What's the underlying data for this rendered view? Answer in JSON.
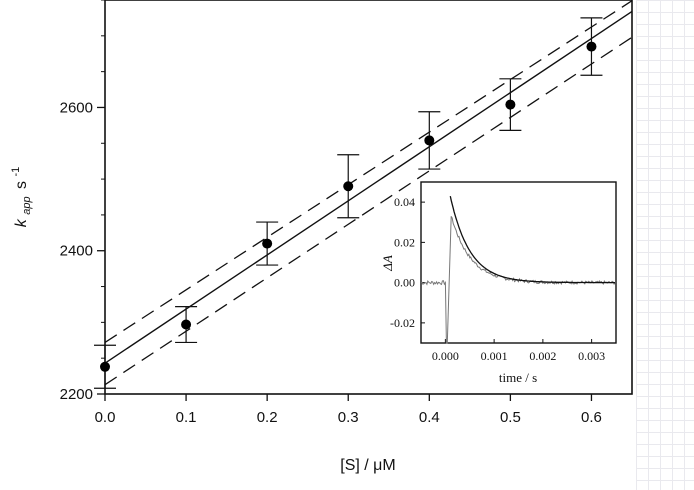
{
  "chart_data": [
    {
      "type": "scatter",
      "xlabel": "[S] / μM",
      "ylabel": {
        "base": "k",
        "sub": "app",
        "unit": "s",
        "sup": "-1"
      },
      "xlim": [
        0,
        0.65
      ],
      "ylim": [
        2200,
        2750
      ],
      "x_ticks": [
        0.0,
        0.1,
        0.2,
        0.3,
        0.4,
        0.5,
        0.6
      ],
      "x_tick_labels": [
        "0.0",
        "0.1",
        "0.2",
        "0.3",
        "0.4",
        "0.5",
        "0.6"
      ],
      "y_ticks": [
        2200,
        2400,
        2600
      ],
      "y_tick_labels": [
        "2200",
        "2400",
        "2600"
      ],
      "y_minor_step": 50,
      "points": [
        {
          "x": 0.0,
          "y": 2238,
          "err": 30
        },
        {
          "x": 0.1,
          "y": 2297,
          "err": 25
        },
        {
          "x": 0.2,
          "y": 2410,
          "err": 30
        },
        {
          "x": 0.3,
          "y": 2490,
          "err": 44
        },
        {
          "x": 0.4,
          "y": 2554,
          "err": 40
        },
        {
          "x": 0.5,
          "y": 2604,
          "err": 36
        },
        {
          "x": 0.6,
          "y": 2685,
          "err": 40
        }
      ],
      "fit_line": {
        "x": [
          0,
          0.65
        ],
        "y": [
          2243,
          2734
        ]
      },
      "confidence_bands": [
        {
          "x": [
            0,
            0.65
          ],
          "y": [
            2272,
            2749
          ]
        },
        {
          "x": [
            0,
            0.65
          ],
          "y": [
            2213,
            2698
          ]
        }
      ]
    },
    {
      "type": "line",
      "xlabel": "time / s",
      "ylabel": "ΔA",
      "xlim": [
        -0.0005,
        0.0035
      ],
      "ylim": [
        -0.03,
        0.05
      ],
      "x_ticks": [
        0.0,
        0.001,
        0.002,
        0.003
      ],
      "x_tick_labels": [
        "0.000",
        "0.001",
        "0.002",
        "0.003"
      ],
      "y_ticks": [
        -0.02,
        0.0,
        0.02,
        0.04
      ],
      "y_tick_labels": [
        "-0.02",
        "0.00",
        "0.02",
        "0.04"
      ],
      "trace": {
        "baseline": 0.0,
        "dip_x": 2e-05,
        "dip_y": -0.03,
        "peak_x": 0.00012,
        "peak_y": 0.033,
        "decay_tau": 0.0004
      },
      "fit_curve": {
        "start_x": 0.0001,
        "start_y": 0.043,
        "decay_tau": 0.0004
      }
    }
  ]
}
